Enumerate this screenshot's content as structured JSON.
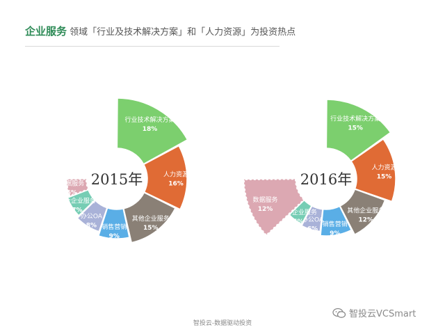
{
  "title": {
    "lead": "企业服务",
    "rest": "领域「行业及技术解决方案」和「人力资源」为投资热点"
  },
  "colors": {
    "green": "#7ccf6e",
    "orange": "#e06b35",
    "brown": "#8a8076",
    "blue": "#5aaee6",
    "purple": "#a9b2d8",
    "teal": "#76cdb4",
    "pink": "#dca8b2",
    "center_text": "#333333"
  },
  "chart_data": [
    {
      "type": "pie",
      "title": "2015年",
      "series": [
        {
          "label": "行业技术解决方案",
          "value": "18%",
          "pct": 18,
          "color": "green"
        },
        {
          "label": "人力资源",
          "value": "16%",
          "pct": 16,
          "color": "orange"
        },
        {
          "label": "其他企业服务",
          "value": "15%",
          "pct": 15,
          "color": "brown"
        },
        {
          "label": "销售营销",
          "value": "9%",
          "pct": 9,
          "color": "blue"
        },
        {
          "label": "办公OA",
          "value": "8%",
          "pct": 8,
          "color": "purple"
        },
        {
          "label": "综合企业服务",
          "value": "7%",
          "pct": 7,
          "color": "teal"
        },
        {
          "label": "数据服务",
          "value": "6%",
          "pct": 6,
          "color": "pink"
        }
      ]
    },
    {
      "type": "pie",
      "title": "2016年",
      "series": [
        {
          "label": "行业技术解决方案",
          "value": "15%",
          "pct": 15,
          "color": "green"
        },
        {
          "label": "人力资源",
          "value": "15%",
          "pct": 15,
          "color": "orange"
        },
        {
          "label": "其他企业服务",
          "value": "12%",
          "pct": 12,
          "color": "brown"
        },
        {
          "label": "销售营销",
          "value": "9%",
          "pct": 9,
          "color": "blue"
        },
        {
          "label": "办公OA",
          "value": "6%",
          "pct": 6,
          "color": "purple"
        },
        {
          "label": "综合企业服务",
          "value": "5%",
          "pct": 5,
          "color": "teal"
        },
        {
          "label": "数据服务",
          "value": "12%",
          "pct": 12,
          "color": "pink"
        }
      ]
    }
  ],
  "footer": "智投云-数据驱动投资",
  "watermark": {
    "icon": "wechat-icon",
    "text": "智投云VCSmart"
  }
}
